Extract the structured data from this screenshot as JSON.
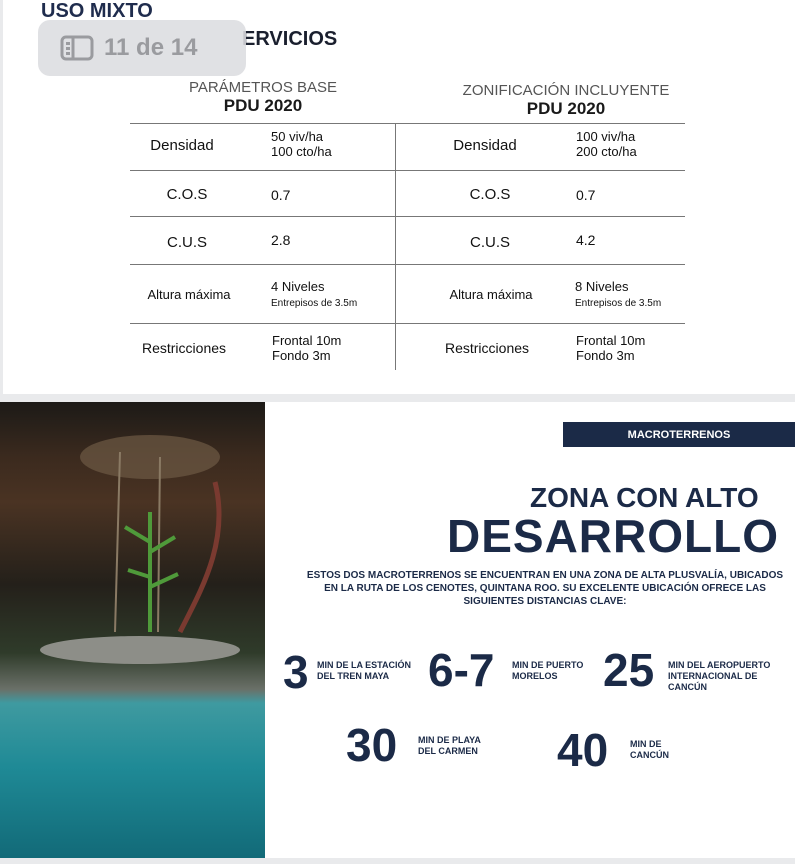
{
  "viewer": {
    "page_indicator": "11 de 14",
    "icon": "sidebar-icon"
  },
  "slide1": {
    "title_line1": "USO MIXTO",
    "title_line2": "ERVICIOS",
    "columns": [
      {
        "subtitle": "PARÁMETROS BASE",
        "title": "PDU 2020",
        "rows": [
          {
            "label": "Densidad",
            "value1": "50 viv/ha",
            "value2": "100 cto/ha"
          },
          {
            "label": "C.O.S",
            "value1": "0.7",
            "value2": ""
          },
          {
            "label": "C.U.S",
            "value1": "2.8",
            "value2": ""
          },
          {
            "label": "Altura máxima",
            "value1": "4 Niveles",
            "value2": "Entrepisos de 3.5m"
          },
          {
            "label": "Restricciones",
            "value1": "Frontal 10m",
            "value2": "Fondo 3m"
          }
        ]
      },
      {
        "subtitle": "ZONIFICACIÓN INCLUYENTE",
        "title": "PDU 2020",
        "rows": [
          {
            "label": "Densidad",
            "value1": "100 viv/ha",
            "value2": "200 cto/ha"
          },
          {
            "label": "C.O.S",
            "value1": "0.7",
            "value2": ""
          },
          {
            "label": "C.U.S",
            "value1": "4.2",
            "value2": ""
          },
          {
            "label": "Altura máxima",
            "value1": "8 Niveles",
            "value2": "Entrepisos de 3.5m"
          },
          {
            "label": "Restricciones",
            "value1": "Frontal 10m",
            "value2": "Fondo 3m"
          }
        ]
      }
    ]
  },
  "slide2": {
    "tag": "MACROTERRENOS",
    "heading_small": "ZONA CON ALTO",
    "heading_big": "DESARROLLO",
    "description": "ESTOS DOS MACROTERRENOS SE ENCUENTRAN EN UNA ZONA DE ALTA PLUSVALÍA, UBICADOS EN LA RUTA DE LOS CENOTES, QUINTANA ROO. SU EXCELENTE UBICACIÓN OFRECE LAS SIGUIENTES DISTANCIAS CLAVE:",
    "distances": [
      {
        "num": "3",
        "l1": "MIN DE LA ESTACIÓN",
        "l2": "DEL TREN MAYA"
      },
      {
        "num": "6-7",
        "l1": "MIN DE PUERTO",
        "l2": "MORELOS"
      },
      {
        "num": "25",
        "l1": "MIN DEL AEROPUERTO",
        "l2": "INTERNACIONAL DE CANCÚN"
      },
      {
        "num": "30",
        "l1": "MIN DE PLAYA",
        "l2": "DEL CARMEN"
      },
      {
        "num": "40",
        "l1": "MIN DE",
        "l2": "CANCÚN"
      }
    ]
  },
  "colors": {
    "navy": "#1b2a47"
  }
}
